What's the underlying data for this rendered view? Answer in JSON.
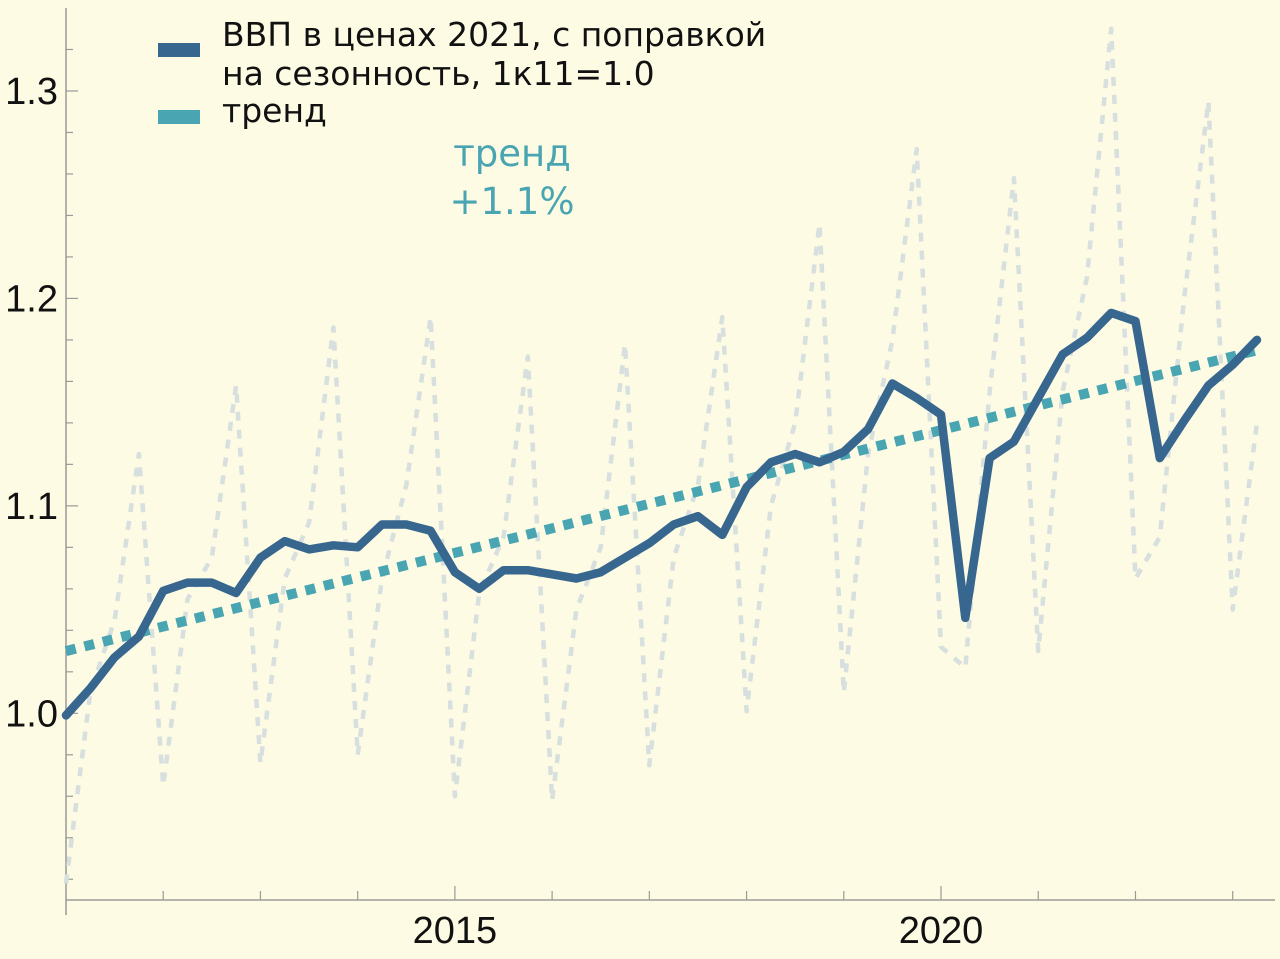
{
  "chart_data": {
    "type": "line",
    "xlim": [
      2011.0,
      2023.25
    ],
    "ylim": [
      0.91,
      1.34
    ],
    "x_ticks": [
      2015,
      2020
    ],
    "x_tick_labels": [
      "2015",
      "2020"
    ],
    "y_ticks": [
      1.0,
      1.1,
      1.2,
      1.3
    ],
    "y_tick_labels": [
      "1.0",
      "1.1",
      "1.2",
      "1.3"
    ],
    "grid": false,
    "legend_position": "top-left",
    "colors": {
      "gdp_sa": "#37668f",
      "trend": "#4aa5b3",
      "raw": "#d7dfdf",
      "background": "#fdfbe3"
    },
    "series": [
      {
        "name": "ВВП в ценах 2021, с поправкой на сезонность, 1к11=1.0",
        "legend_lines": [
          "ВВП в ценах 2021, с поправкой",
          "на сезонность, 1к11=1.0"
        ],
        "style": "solid",
        "x": [
          2011.0,
          2011.25,
          2011.5,
          2011.75,
          2012.0,
          2012.25,
          2012.5,
          2012.75,
          2013.0,
          2013.25,
          2013.5,
          2013.75,
          2014.0,
          2014.25,
          2014.5,
          2014.75,
          2015.0,
          2015.25,
          2015.5,
          2015.75,
          2016.0,
          2016.25,
          2016.5,
          2016.75,
          2017.0,
          2017.25,
          2017.5,
          2017.75,
          2018.0,
          2018.25,
          2018.5,
          2018.75,
          2019.0,
          2019.25,
          2019.5,
          2019.75,
          2020.0,
          2020.25,
          2020.5,
          2020.75,
          2021.0,
          2021.25,
          2021.5,
          2021.75,
          2022.0,
          2022.25,
          2022.5,
          2022.75,
          2023.0,
          2023.25
        ],
        "values": [
          0.999,
          1.012,
          1.027,
          1.037,
          1.059,
          1.063,
          1.063,
          1.058,
          1.075,
          1.083,
          1.079,
          1.081,
          1.08,
          1.091,
          1.091,
          1.088,
          1.068,
          1.06,
          1.069,
          1.069,
          1.067,
          1.065,
          1.068,
          1.075,
          1.082,
          1.091,
          1.095,
          1.086,
          1.109,
          1.121,
          1.125,
          1.121,
          1.126,
          1.137,
          1.159,
          1.152,
          1.144,
          1.046,
          1.123,
          1.131,
          1.152,
          1.173,
          1.181,
          1.193,
          1.189,
          1.123,
          1.141,
          1.158,
          1.168,
          1.18
        ]
      },
      {
        "name": "тренд",
        "style": "dotted",
        "x": [
          2011.0,
          2023.25
        ],
        "values": [
          1.03,
          1.175
        ]
      },
      {
        "name": "",
        "style": "dashed",
        "x": [
          2011.0,
          2011.25,
          2011.5,
          2011.75,
          2012.0,
          2012.25,
          2012.5,
          2012.75,
          2013.0,
          2013.25,
          2013.5,
          2013.75,
          2014.0,
          2014.25,
          2014.5,
          2014.75,
          2015.0,
          2015.25,
          2015.5,
          2015.75,
          2016.0,
          2016.25,
          2016.5,
          2016.75,
          2017.0,
          2017.25,
          2017.5,
          2017.75,
          2018.0,
          2018.25,
          2018.5,
          2018.75,
          2019.0,
          2019.25,
          2019.5,
          2019.75,
          2020.0,
          2020.25,
          2020.5,
          2020.75,
          2021.0,
          2021.25,
          2021.5,
          2021.75,
          2022.0,
          2022.25,
          2022.5,
          2022.75,
          2023.0,
          2023.25
        ],
        "values": [
          0.918,
          1.01,
          1.045,
          1.125,
          0.965,
          1.055,
          1.075,
          1.158,
          0.976,
          1.065,
          1.092,
          1.186,
          0.98,
          1.065,
          1.11,
          1.191,
          0.96,
          1.058,
          1.085,
          1.172,
          0.958,
          1.05,
          1.08,
          1.178,
          0.975,
          1.075,
          1.11,
          1.191,
          1.001,
          1.1,
          1.14,
          1.236,
          1.01,
          1.125,
          1.18,
          1.272,
          1.032,
          1.022,
          1.155,
          1.258,
          1.03,
          1.155,
          1.21,
          1.33,
          1.065,
          1.085,
          1.2,
          1.295,
          1.05,
          1.14
        ]
      }
    ],
    "annotation": [
      "тренд",
      "+1.1%"
    ]
  }
}
